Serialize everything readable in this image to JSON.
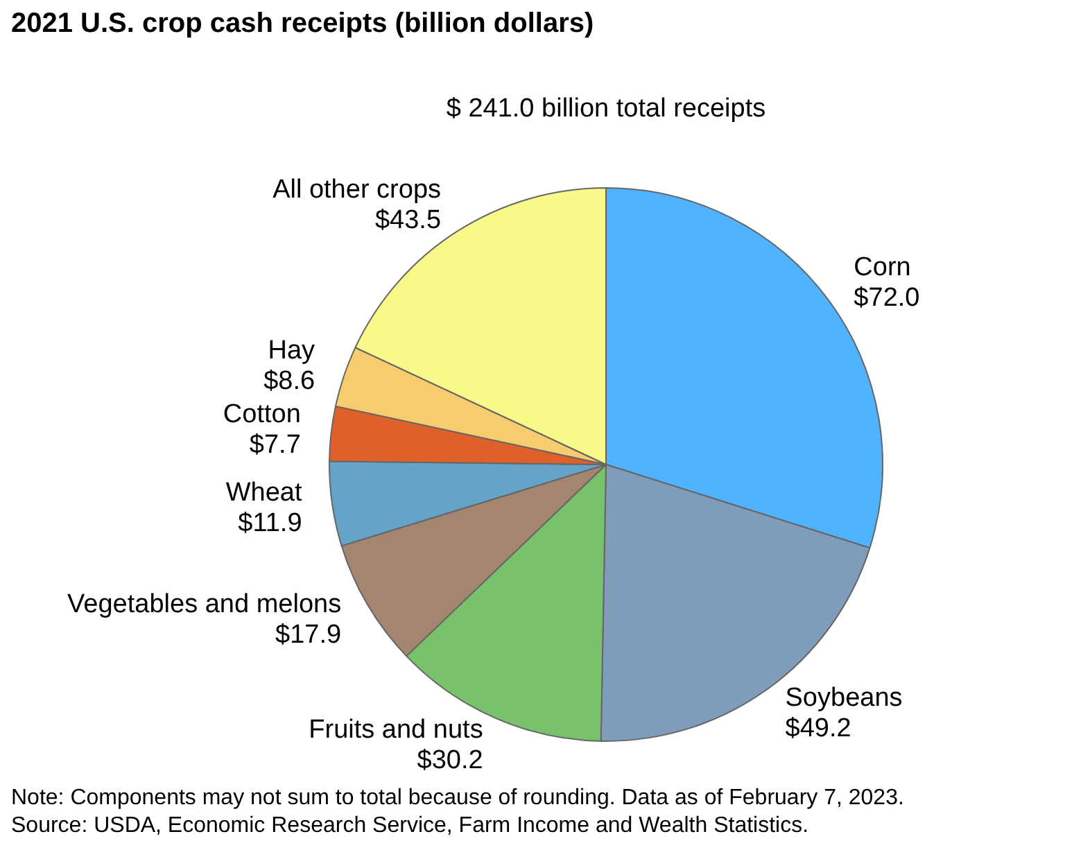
{
  "chart_data": {
    "type": "pie",
    "title": "2021 U.S. crop cash receipts (billion dollars)",
    "subtitle": "$ 241.0 billion total receipts",
    "categories": [
      "Corn",
      "Soybeans",
      "Fruits and nuts",
      "Vegetables and melons",
      "Wheat",
      "Cotton",
      "Hay",
      "All other crops"
    ],
    "values": [
      72.0,
      49.2,
      30.2,
      17.9,
      11.9,
      7.7,
      8.6,
      43.5
    ],
    "colors": [
      "#4fb3ff",
      "#7f9cbb",
      "#77c26a",
      "#a38570",
      "#66a3c8",
      "#e0602a",
      "#f7cc6e",
      "#f9f98a"
    ],
    "value_labels": [
      "$72.0",
      "$49.2",
      "$30.2",
      "$17.9",
      "$11.9",
      "$7.7",
      "$8.6",
      "$43.5"
    ],
    "annotations": [
      "Note: Components may not sum to total because of rounding. Data as of February 7, 2023.",
      "Source: USDA, Economic Research Service, Farm Income and Wealth Statistics."
    ]
  }
}
